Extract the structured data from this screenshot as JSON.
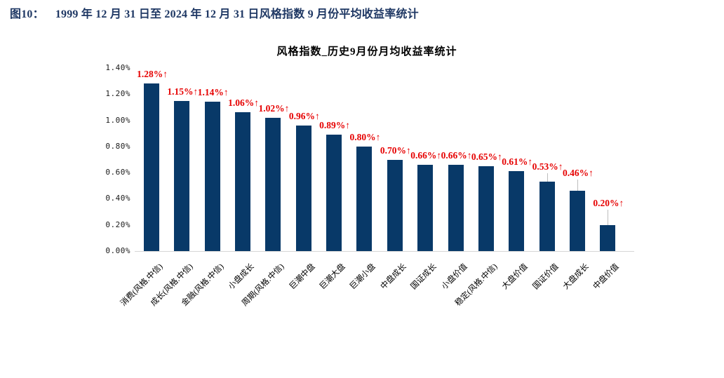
{
  "header": {
    "figure_label": "图10：",
    "figure_title": "1999 年 12 月 31 日至 2024 年 12 月 31 日风格指数 9 月份平均收益率统计",
    "color": "#1f3864"
  },
  "chart_data": {
    "type": "bar",
    "title": "风格指数_历史9月份月均收益率统计",
    "categories": [
      "消费(风格.中信)",
      "成长(风格.中信)",
      "金融(风格.中信)",
      "小盘成长",
      "周期(风格.中信)",
      "巨潮中盘",
      "巨潮大盘",
      "巨潮小盘",
      "中盘成长",
      "国证成长",
      "小盘价值",
      "稳定(风格.中信)",
      "大盘价值",
      "国证价值",
      "大盘成长",
      "中盘价值"
    ],
    "values": [
      1.28,
      1.15,
      1.14,
      1.06,
      1.02,
      0.96,
      0.89,
      0.8,
      0.7,
      0.66,
      0.66,
      0.65,
      0.61,
      0.53,
      0.46,
      0.2
    ],
    "data_labels": [
      "1.28%↑",
      "1.15%↑",
      "1.14%↑",
      "1.06%↑",
      "1.02%↑",
      "0.96%↑",
      "0.89%↑",
      "0.80%↑",
      "0.70%↑",
      "0.66%↑",
      "0.66%↑",
      "0.65%↑",
      "0.61%↑",
      "0.53%↑",
      "0.46%↑",
      "0.20%↑"
    ],
    "yticks": [
      "1.40%",
      "1.20%",
      "1.00%",
      "0.80%",
      "0.60%",
      "0.40%",
      "0.20%",
      "0.00%"
    ],
    "ylim": [
      0,
      1.4
    ],
    "ytick_step": 0.2,
    "xlabel": "",
    "ylabel": "",
    "grid": false,
    "legend": null,
    "bar_color": "#083968",
    "data_label_color": "#e60000",
    "axis_line_color": "#d6d6d6",
    "leader_line_color": "#bdbdbd"
  }
}
